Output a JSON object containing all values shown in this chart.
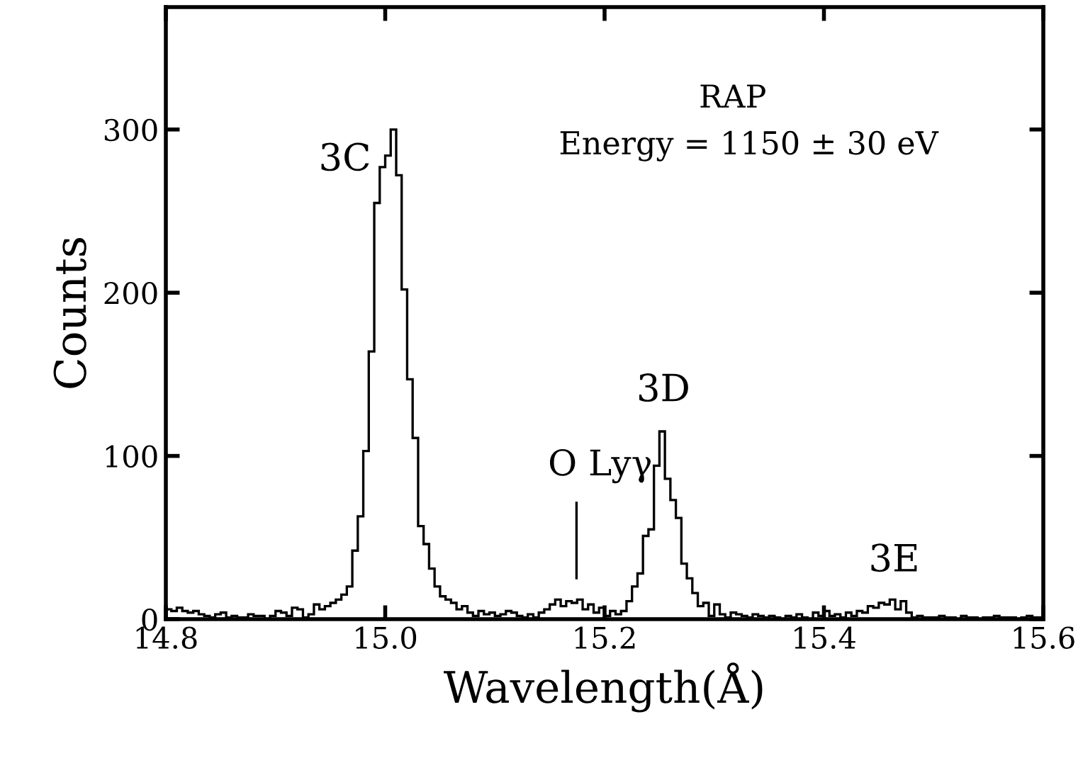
{
  "chart_data": {
    "type": "histogram",
    "xlabel": "Wavelength(Å)",
    "ylabel": "Counts",
    "color": "#000000",
    "xlim": [
      14.8,
      15.6
    ],
    "xticks": [
      {
        "value": 14.8,
        "label": "14.8"
      },
      {
        "value": 15.0,
        "label": "15.0"
      },
      {
        "value": 15.2,
        "label": "15.2"
      },
      {
        "value": 15.4,
        "label": "15.4"
      },
      {
        "value": 15.6,
        "label": "15.6"
      }
    ],
    "ylim": [
      0,
      375
    ],
    "yticks": [
      0,
      100,
      200,
      300
    ],
    "grid": false,
    "bins": [
      14.8,
      14.805,
      14.81,
      14.815,
      14.82,
      14.825,
      14.83,
      14.835,
      14.84,
      14.845,
      14.85,
      14.855,
      14.86,
      14.865,
      14.87,
      14.875,
      14.88,
      14.885,
      14.89,
      14.895,
      14.9,
      14.905,
      14.91,
      14.915,
      14.92,
      14.925,
      14.93,
      14.935,
      14.94,
      14.945,
      14.95,
      14.955,
      14.96,
      14.965,
      14.97,
      14.975,
      14.98,
      14.985,
      14.99,
      14.995,
      15.0,
      15.005,
      15.01,
      15.015,
      15.02,
      15.025,
      15.03,
      15.035,
      15.04,
      15.045,
      15.05,
      15.055,
      15.06,
      15.065,
      15.07,
      15.075,
      15.08,
      15.085,
      15.09,
      15.095,
      15.1,
      15.105,
      15.11,
      15.115,
      15.12,
      15.125,
      15.13,
      15.135,
      15.14,
      15.145,
      15.15,
      15.155,
      15.16,
      15.165,
      15.17,
      15.175,
      15.18,
      15.185,
      15.19,
      15.195,
      15.2,
      15.205,
      15.21,
      15.215,
      15.22,
      15.225,
      15.23,
      15.235,
      15.24,
      15.245,
      15.25,
      15.255,
      15.26,
      15.265,
      15.27,
      15.275,
      15.28,
      15.285,
      15.29,
      15.295,
      15.3,
      15.305,
      15.31,
      15.315,
      15.32,
      15.325,
      15.33,
      15.335,
      15.34,
      15.345,
      15.35,
      15.355,
      15.36,
      15.365,
      15.37,
      15.375,
      15.38,
      15.385,
      15.39,
      15.395,
      15.4,
      15.405,
      15.41,
      15.415,
      15.42,
      15.425,
      15.43,
      15.435,
      15.44,
      15.445,
      15.45,
      15.455,
      15.46,
      15.465,
      15.47,
      15.475,
      15.48,
      15.485,
      15.49,
      15.495,
      15.5,
      15.505,
      15.51,
      15.515,
      15.52,
      15.525,
      15.53,
      15.535,
      15.54,
      15.545,
      15.55,
      15.555,
      15.56,
      15.565,
      15.57,
      15.575,
      15.58,
      15.585,
      15.59,
      15.595,
      15.6
    ],
    "values": [
      6,
      5,
      7,
      5,
      4,
      5,
      3,
      2,
      1,
      3,
      4,
      1,
      2,
      1,
      1,
      3,
      2,
      2,
      0,
      2,
      5,
      4,
      2,
      7,
      6,
      1,
      3,
      9,
      6,
      8,
      10,
      12,
      15,
      20,
      42,
      63,
      103,
      164,
      255,
      277,
      284,
      300,
      272,
      202,
      147,
      111,
      57,
      46,
      31,
      20,
      14,
      12,
      10,
      6,
      8,
      4,
      2,
      5,
      3,
      4,
      2,
      3,
      5,
      4,
      2,
      1,
      3,
      1,
      4,
      6,
      9,
      12,
      8,
      11,
      10,
      12,
      6,
      9,
      4,
      7,
      2,
      5,
      3,
      5,
      11,
      20,
      28,
      51,
      55,
      94,
      115,
      86,
      73,
      62,
      34,
      25,
      16,
      8,
      10,
      2,
      9,
      3,
      1,
      4,
      3,
      2,
      1,
      3,
      2,
      1,
      2,
      1,
      0,
      2,
      1,
      3,
      1,
      0,
      4,
      2,
      5,
      2,
      3,
      1,
      4,
      2,
      5,
      4,
      8,
      7,
      10,
      9,
      12,
      6,
      11,
      4,
      1,
      2,
      1,
      1,
      1,
      2,
      1,
      1,
      0,
      2,
      1,
      1,
      0,
      1,
      1,
      2,
      1,
      1,
      1,
      0,
      1,
      2,
      1,
      1
    ],
    "annotations": [
      "3C",
      "O Lyγ",
      "3D",
      "3E",
      "RAP",
      "Energy = 1150 ± 30 eV"
    ]
  }
}
